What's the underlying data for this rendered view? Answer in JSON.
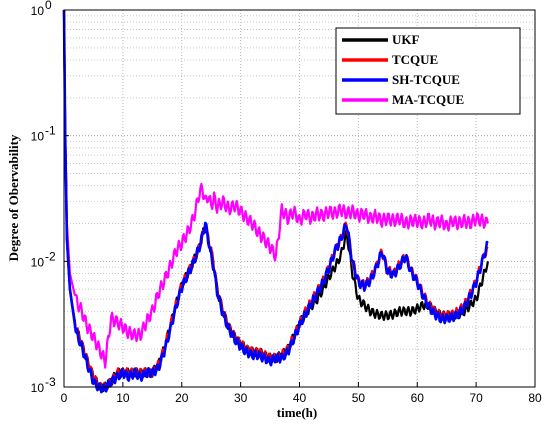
{
  "chart_data": {
    "type": "line",
    "xlabel": "time(h)",
    "ylabel": "Degree of Obervability",
    "xlim": [
      0,
      80
    ],
    "ylim": [
      0.001,
      1
    ],
    "yscale": "log",
    "grid": true,
    "legend_position": "top-right",
    "x_ticks": [
      "0",
      "10",
      "20",
      "30",
      "40",
      "50",
      "60",
      "70",
      "80"
    ],
    "y_ticks": [
      {
        "base": "10",
        "exp": "0"
      },
      {
        "base": "10",
        "exp": "-1"
      },
      {
        "base": "10",
        "exp": "-2"
      },
      {
        "base": "10",
        "exp": "-3"
      }
    ],
    "series": [
      {
        "name": "UKF",
        "color": "#000000",
        "x": [
          0,
          0.2,
          0.5,
          1,
          2,
          3,
          4,
          5,
          6,
          7,
          8,
          9,
          10,
          11,
          12,
          13,
          14,
          15,
          16,
          17,
          18,
          19,
          20,
          21,
          22,
          23,
          23.5,
          24,
          24.5,
          25,
          25.5,
          26,
          27,
          28,
          29,
          30,
          31,
          32,
          33,
          34,
          35,
          36,
          37,
          38,
          39,
          40,
          41,
          42,
          43,
          44,
          45,
          46,
          47,
          48,
          49,
          50,
          51,
          52,
          53,
          54,
          55,
          56,
          57,
          58,
          59,
          60,
          61,
          62,
          63,
          64,
          65,
          66,
          67,
          68,
          69,
          70,
          71,
          72
        ],
        "values": [
          1,
          0.1,
          0.015,
          0.006,
          0.003,
          0.0022,
          0.0016,
          0.0012,
          0.001,
          0.001,
          0.0011,
          0.0013,
          0.0013,
          0.0013,
          0.0013,
          0.0013,
          0.0013,
          0.0013,
          0.0015,
          0.002,
          0.003,
          0.0045,
          0.0065,
          0.008,
          0.01,
          0.013,
          0.016,
          0.019,
          0.015,
          0.012,
          0.009,
          0.006,
          0.004,
          0.003,
          0.0025,
          0.0022,
          0.002,
          0.0019,
          0.0019,
          0.0018,
          0.0017,
          0.0017,
          0.0018,
          0.002,
          0.0025,
          0.0032,
          0.0038,
          0.0044,
          0.005,
          0.006,
          0.0075,
          0.009,
          0.011,
          0.017,
          0.008,
          0.005,
          0.0045,
          0.004,
          0.0038,
          0.0037,
          0.0037,
          0.0038,
          0.004,
          0.004,
          0.004,
          0.0042,
          0.0045,
          0.0045,
          0.004,
          0.0037,
          0.0037,
          0.0037,
          0.0038,
          0.004,
          0.0045,
          0.005,
          0.007,
          0.01
        ]
      },
      {
        "name": "TCQUE",
        "color": "#ff0000",
        "x": [
          0,
          0.2,
          0.5,
          1,
          2,
          3,
          4,
          5,
          6,
          7,
          8,
          9,
          10,
          11,
          12,
          13,
          14,
          15,
          16,
          17,
          18,
          19,
          20,
          21,
          22,
          23,
          23.5,
          24,
          24.5,
          25,
          25.5,
          26,
          27,
          28,
          29,
          30,
          31,
          32,
          33,
          34,
          35,
          36,
          37,
          38,
          39,
          40,
          41,
          42,
          43,
          44,
          45,
          46,
          47,
          48,
          49,
          50,
          51,
          52,
          53,
          54,
          55,
          56,
          57,
          58,
          59,
          60,
          61,
          62,
          63,
          64,
          65,
          66,
          67,
          68,
          69,
          70,
          71,
          72
        ],
        "values": [
          1,
          0.1,
          0.015,
          0.006,
          0.003,
          0.0022,
          0.0016,
          0.0012,
          0.001,
          0.001,
          0.0011,
          0.0013,
          0.0013,
          0.0013,
          0.0013,
          0.0013,
          0.0013,
          0.0013,
          0.0015,
          0.002,
          0.003,
          0.0045,
          0.0065,
          0.008,
          0.01,
          0.013,
          0.016,
          0.019,
          0.015,
          0.012,
          0.009,
          0.006,
          0.004,
          0.003,
          0.0025,
          0.0022,
          0.002,
          0.0019,
          0.0019,
          0.0018,
          0.0017,
          0.0017,
          0.0018,
          0.002,
          0.0025,
          0.0032,
          0.004,
          0.0048,
          0.0058,
          0.007,
          0.009,
          0.012,
          0.015,
          0.02,
          0.01,
          0.007,
          0.0065,
          0.0072,
          0.009,
          0.012,
          0.0085,
          0.008,
          0.0095,
          0.011,
          0.0085,
          0.007,
          0.0055,
          0.0045,
          0.004,
          0.0037,
          0.0037,
          0.0038,
          0.004,
          0.0045,
          0.0055,
          0.007,
          0.01,
          0.013
        ]
      },
      {
        "name": "SH-TCQUE",
        "color": "#0000ff",
        "x": [
          0,
          0.2,
          0.5,
          1,
          2,
          3,
          4,
          5,
          6,
          7,
          8,
          9,
          10,
          11,
          12,
          13,
          14,
          15,
          16,
          17,
          18,
          19,
          20,
          21,
          22,
          23,
          23.5,
          24,
          24.5,
          25,
          25.5,
          26,
          27,
          28,
          29,
          30,
          31,
          32,
          33,
          34,
          35,
          36,
          37,
          38,
          39,
          40,
          41,
          42,
          43,
          44,
          45,
          46,
          47,
          48,
          49,
          50,
          51,
          52,
          53,
          54,
          55,
          56,
          57,
          58,
          59,
          60,
          61,
          62,
          63,
          64,
          65,
          66,
          67,
          68,
          69,
          70,
          71,
          72
        ],
        "values": [
          1,
          0.1,
          0.015,
          0.006,
          0.0028,
          0.0021,
          0.0015,
          0.0011,
          0.00098,
          0.00098,
          0.0011,
          0.0012,
          0.0013,
          0.0012,
          0.0013,
          0.0012,
          0.0013,
          0.0013,
          0.0014,
          0.0019,
          0.0028,
          0.0043,
          0.0062,
          0.0078,
          0.0098,
          0.013,
          0.016,
          0.02,
          0.015,
          0.011,
          0.0085,
          0.0058,
          0.0038,
          0.0029,
          0.0024,
          0.0021,
          0.0019,
          0.0018,
          0.0018,
          0.0017,
          0.0016,
          0.0017,
          0.0017,
          0.0019,
          0.0024,
          0.0031,
          0.0038,
          0.0046,
          0.0056,
          0.0068,
          0.0088,
          0.012,
          0.015,
          0.02,
          0.0098,
          0.0068,
          0.0063,
          0.007,
          0.0088,
          0.012,
          0.0082,
          0.0078,
          0.0092,
          0.011,
          0.0082,
          0.0068,
          0.0053,
          0.0043,
          0.0038,
          0.0035,
          0.0035,
          0.0036,
          0.0038,
          0.0043,
          0.0053,
          0.0068,
          0.0098,
          0.014
        ]
      },
      {
        "name": "MA-TCQUE",
        "color": "#ff00ff",
        "x": [
          0,
          0.2,
          0.5,
          1,
          2,
          3,
          4,
          5,
          6,
          7,
          8,
          9,
          10,
          11,
          12,
          13,
          14,
          15,
          16,
          17,
          18,
          19,
          20,
          21,
          22,
          23,
          23.5,
          24,
          24.5,
          25,
          25.5,
          26,
          27,
          28,
          29,
          30,
          31,
          32,
          33,
          34,
          35,
          36,
          37,
          38,
          39,
          40,
          41,
          42,
          43,
          44,
          45,
          46,
          47,
          48,
          49,
          50,
          51,
          52,
          53,
          54,
          55,
          56,
          57,
          58,
          59,
          60,
          61,
          62,
          63,
          64,
          65,
          66,
          67,
          68,
          69,
          70,
          71,
          72
        ],
        "values": [
          1,
          0.1,
          0.02,
          0.008,
          0.005,
          0.004,
          0.003,
          0.0025,
          0.002,
          0.0016,
          0.0035,
          0.0033,
          0.003,
          0.0027,
          0.0026,
          0.0026,
          0.0033,
          0.004,
          0.0055,
          0.007,
          0.009,
          0.012,
          0.014,
          0.017,
          0.022,
          0.035,
          0.038,
          0.03,
          0.033,
          0.028,
          0.032,
          0.027,
          0.03,
          0.026,
          0.028,
          0.025,
          0.022,
          0.02,
          0.017,
          0.015,
          0.013,
          0.011,
          0.026,
          0.022,
          0.025,
          0.021,
          0.024,
          0.022,
          0.024,
          0.023,
          0.025,
          0.024,
          0.026,
          0.024,
          0.025,
          0.023,
          0.024,
          0.022,
          0.023,
          0.021,
          0.022,
          0.021,
          0.022,
          0.02,
          0.021,
          0.021,
          0.02,
          0.022,
          0.02,
          0.021,
          0.019,
          0.021,
          0.02,
          0.021,
          0.02,
          0.022,
          0.021,
          0.02
        ]
      }
    ]
  }
}
